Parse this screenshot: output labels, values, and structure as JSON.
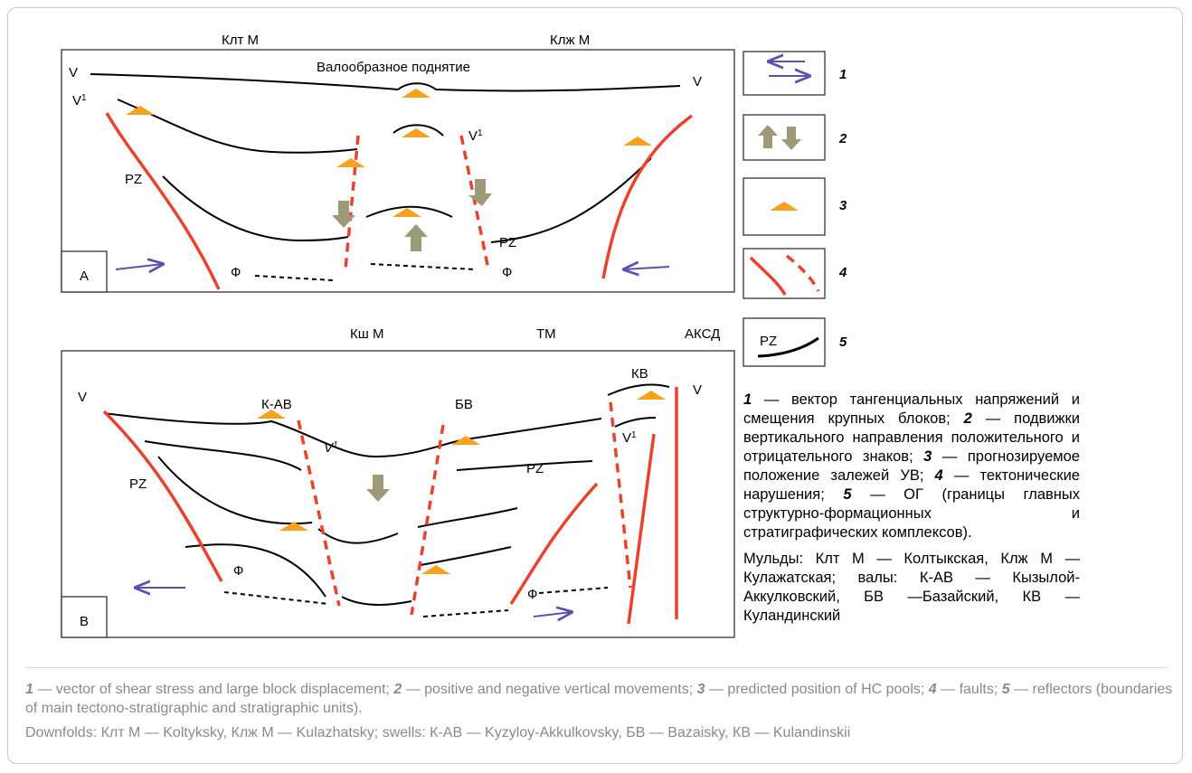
{
  "panel_a": {
    "top_labels": [
      "Клт М",
      "Клж М"
    ],
    "title": "Валообразное поднятие",
    "letter": "А",
    "labels": [
      {
        "text": "V"
      },
      {
        "text": "V",
        "sup": "1"
      },
      {
        "text": "PZ"
      },
      {
        "text": "PZ"
      },
      {
        "text": "Ф"
      },
      {
        "text": "Ф"
      },
      {
        "text": "V",
        "sup": "1"
      },
      {
        "text": "V"
      }
    ]
  },
  "panel_b": {
    "top_labels": [
      "Кш М",
      "ТМ",
      "АКСД"
    ],
    "letter": "В",
    "labels": [
      {
        "text": "V"
      },
      {
        "text": "К-АВ"
      },
      {
        "text": "БВ"
      },
      {
        "text": "КВ"
      },
      {
        "text": "V"
      },
      {
        "text": "V",
        "sup": "1"
      },
      {
        "text": "V",
        "sup": "1"
      },
      {
        "text": "PZ"
      },
      {
        "text": "PZ"
      },
      {
        "text": "Ф"
      },
      {
        "text": "Ф"
      }
    ]
  },
  "legend": {
    "numbers": [
      "1",
      "2",
      "3",
      "4",
      "5"
    ],
    "pz": "PZ"
  },
  "explanation": {
    "items": [
      {
        "num": "1",
        "text": "— вектор тангенциальных напряжений и смещения крупных блоков;"
      },
      {
        "num": "2",
        "text": "— подвижки вертикального направления положительного и отрицательного знаков;"
      },
      {
        "num": "3",
        "text": "— прогнозируемое положение залежей УВ;"
      },
      {
        "num": "4",
        "text": "— тектонические нарушения;"
      },
      {
        "num": "5",
        "text": "— ОГ (границы главных структурно-формационных и стратиграфических комплексов)."
      }
    ],
    "note": "Мульды: Клт М — Колтыкская, Клж М — Кулажатская; валы: К-АВ — Кызылой-Аккулковский, БВ —Базайский, КВ — Куландинский"
  },
  "caption": {
    "items": [
      {
        "num": "1",
        "text": "— vector of shear stress and large block displacement;"
      },
      {
        "num": "2",
        "text": "— positive and negative vertical movements;"
      },
      {
        "num": "3",
        "text": "— predicted position of HC pools;"
      },
      {
        "num": "4",
        "text": "— faults;"
      },
      {
        "num": "5",
        "text": "— reflectors (boundaries of main tectono-stratigraphic and stratigraphic units)."
      }
    ],
    "note": "Downfolds: Клт М — Koltyksky, Клж М — Kulazhatsky; swells: К-АВ — Kyzyloy-Akkulkovsky, БВ — Bazaisky, КВ — Kulandinskii"
  }
}
